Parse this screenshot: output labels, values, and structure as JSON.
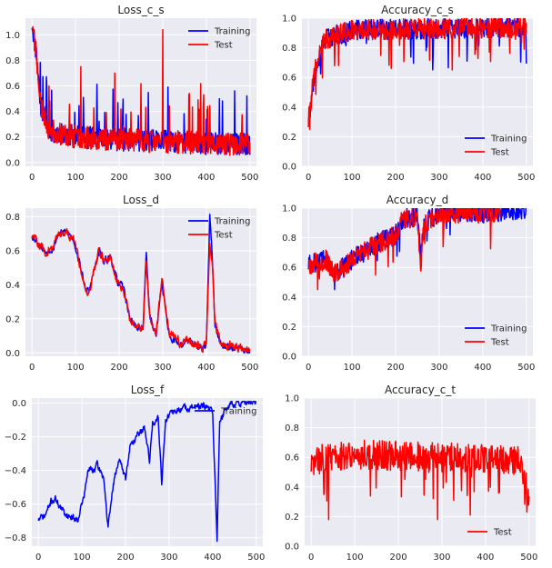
{
  "chart_data": [
    {
      "type": "line",
      "title": "Loss_c_s",
      "xlim": [
        -15,
        515
      ],
      "ylim": [
        -0.03,
        1.13
      ],
      "xticks": [
        0,
        100,
        200,
        300,
        400,
        500
      ],
      "yticks": [
        0.0,
        0.2,
        0.4,
        0.6,
        0.8,
        1.0
      ],
      "ytick_labels": [
        "0.0",
        "0.2",
        "0.4",
        "0.6",
        "0.8",
        "1.0"
      ],
      "legend": "top-right",
      "series": [
        {
          "name": "Training",
          "color": "#0000ff",
          "gen": {
            "seed": 11,
            "n": 500,
            "kind": "noisy",
            "keys": [
              [
                0,
                1.1
              ],
              [
                10,
                0.85
              ],
              [
                20,
                0.45
              ],
              [
                40,
                0.25
              ],
              [
                100,
                0.2
              ],
              [
                250,
                0.17
              ],
              [
                500,
                0.14
              ]
            ],
            "noise": 0.09,
            "spikeP": 0.05,
            "spikeAmp": 0.42,
            "min": 0.01,
            "max": 1.1
          }
        },
        {
          "name": "Test",
          "color": "#ff0000",
          "gen": {
            "seed": 23,
            "n": 500,
            "kind": "noisy",
            "keys": [
              [
                0,
                1.1
              ],
              [
                10,
                0.85
              ],
              [
                20,
                0.45
              ],
              [
                40,
                0.25
              ],
              [
                100,
                0.2
              ],
              [
                250,
                0.17
              ],
              [
                500,
                0.14
              ]
            ],
            "noise": 0.09,
            "spikeP": 0.04,
            "spikeAmp": 0.42,
            "min": 0.01,
            "max": 1.1,
            "spikes": [
              [
                300,
                1.04
              ],
              [
                112,
                0.75
              ],
              [
                190,
                0.7
              ]
            ]
          }
        }
      ]
    },
    {
      "type": "line",
      "title": "Accuracy_c_s",
      "xlim": [
        -15,
        515
      ],
      "ylim": [
        0.0,
        1.0
      ],
      "xticks": [
        0,
        100,
        200,
        300,
        400,
        500
      ],
      "yticks": [
        0.0,
        0.2,
        0.4,
        0.6,
        0.8,
        1.0
      ],
      "ytick_labels": [
        "0.0",
        "0.2",
        "0.4",
        "0.6",
        "0.8",
        "1.0"
      ],
      "legend": "bottom-right",
      "series": [
        {
          "name": "Training",
          "color": "#0000ff",
          "gen": {
            "seed": 37,
            "n": 500,
            "kind": "noisy",
            "keys": [
              [
                0,
                0.3
              ],
              [
                10,
                0.55
              ],
              [
                20,
                0.72
              ],
              [
                40,
                0.86
              ],
              [
                100,
                0.92
              ],
              [
                500,
                0.94
              ]
            ],
            "noise": 0.07,
            "spikeP": 0.05,
            "spikeAmp": -0.22,
            "min": 0.25,
            "max": 1.0
          }
        },
        {
          "name": "Test",
          "color": "#ff0000",
          "gen": {
            "seed": 41,
            "n": 500,
            "kind": "noisy",
            "keys": [
              [
                0,
                0.3
              ],
              [
                10,
                0.55
              ],
              [
                20,
                0.72
              ],
              [
                40,
                0.86
              ],
              [
                100,
                0.92
              ],
              [
                500,
                0.94
              ]
            ],
            "noise": 0.07,
            "spikeP": 0.05,
            "spikeAmp": -0.22,
            "min": 0.25,
            "max": 1.0,
            "spikes": [
              [
                3,
                0.25
              ],
              [
                190,
                0.66
              ],
              [
                330,
                0.65
              ],
              [
                60,
                0.68
              ]
            ]
          }
        }
      ]
    },
    {
      "type": "line",
      "title": "Loss_d",
      "xlim": [
        -15,
        515
      ],
      "ylim": [
        -0.02,
        0.85
      ],
      "xticks": [
        0,
        100,
        200,
        300,
        400,
        500
      ],
      "yticks": [
        0.0,
        0.2,
        0.4,
        0.6,
        0.8
      ],
      "ytick_labels": [
        "0.0",
        "0.2",
        "0.4",
        "0.6",
        "0.8"
      ],
      "legend": "top-right",
      "series": [
        {
          "name": "Training",
          "color": "#0000ff",
          "gen": {
            "seed": 53,
            "n": 500,
            "kind": "smooth",
            "keys": [
              [
                0,
                0.69
              ],
              [
                20,
                0.63
              ],
              [
                30,
                0.59
              ],
              [
                50,
                0.62
              ],
              [
                60,
                0.7
              ],
              [
                80,
                0.71
              ],
              [
                95,
                0.67
              ],
              [
                110,
                0.52
              ],
              [
                120,
                0.4
              ],
              [
                130,
                0.35
              ],
              [
                140,
                0.46
              ],
              [
                155,
                0.6
              ],
              [
                165,
                0.53
              ],
              [
                180,
                0.57
              ],
              [
                195,
                0.42
              ],
              [
                210,
                0.38
              ],
              [
                225,
                0.2
              ],
              [
                240,
                0.15
              ],
              [
                255,
                0.14
              ],
              [
                262,
                0.6
              ],
              [
                270,
                0.22
              ],
              [
                285,
                0.1
              ],
              [
                292,
                0.28
              ],
              [
                298,
                0.42
              ],
              [
                305,
                0.28
              ],
              [
                315,
                0.1
              ],
              [
                340,
                0.05
              ],
              [
                360,
                0.07
              ],
              [
                390,
                0.02
              ],
              [
                400,
                0.05
              ],
              [
                408,
                0.79
              ],
              [
                413,
                0.6
              ],
              [
                420,
                0.15
              ],
              [
                435,
                0.03
              ],
              [
                450,
                0.04
              ],
              [
                500,
                0.01
              ]
            ],
            "noise": 0.025,
            "min": 0.0,
            "max": 0.82
          }
        },
        {
          "name": "Test",
          "color": "#ff0000",
          "gen": {
            "seed": 59,
            "n": 500,
            "kind": "smooth",
            "keys": [
              [
                0,
                0.69
              ],
              [
                20,
                0.63
              ],
              [
                30,
                0.59
              ],
              [
                50,
                0.62
              ],
              [
                60,
                0.7
              ],
              [
                80,
                0.71
              ],
              [
                95,
                0.67
              ],
              [
                110,
                0.52
              ],
              [
                120,
                0.4
              ],
              [
                130,
                0.35
              ],
              [
                140,
                0.46
              ],
              [
                155,
                0.6
              ],
              [
                165,
                0.53
              ],
              [
                180,
                0.57
              ],
              [
                195,
                0.42
              ],
              [
                210,
                0.38
              ],
              [
                225,
                0.2
              ],
              [
                240,
                0.15
              ],
              [
                255,
                0.14
              ],
              [
                262,
                0.55
              ],
              [
                270,
                0.22
              ],
              [
                285,
                0.1
              ],
              [
                292,
                0.3
              ],
              [
                298,
                0.44
              ],
              [
                305,
                0.3
              ],
              [
                315,
                0.12
              ],
              [
                340,
                0.06
              ],
              [
                360,
                0.08
              ],
              [
                390,
                0.03
              ],
              [
                400,
                0.06
              ],
              [
                408,
                0.65
              ],
              [
                413,
                0.55
              ],
              [
                420,
                0.18
              ],
              [
                435,
                0.04
              ],
              [
                450,
                0.05
              ],
              [
                500,
                0.01
              ]
            ],
            "noise": 0.03,
            "min": 0.0,
            "max": 0.82
          }
        }
      ]
    },
    {
      "type": "line",
      "title": "Accuracy_d",
      "xlim": [
        -15,
        515
      ],
      "ylim": [
        0.0,
        1.0
      ],
      "xticks": [
        0,
        100,
        200,
        300,
        400,
        500
      ],
      "yticks": [
        0.0,
        0.2,
        0.4,
        0.6,
        0.8,
        1.0
      ],
      "ytick_labels": [
        "0.0",
        "0.2",
        "0.4",
        "0.6",
        "0.8",
        "1.0"
      ],
      "legend": "bottom-right",
      "series": [
        {
          "name": "Training",
          "color": "#0000ff",
          "gen": {
            "seed": 61,
            "n": 500,
            "kind": "noisy",
            "keys": [
              [
                0,
                0.62
              ],
              [
                40,
                0.65
              ],
              [
                60,
                0.55
              ],
              [
                100,
                0.65
              ],
              [
                150,
                0.75
              ],
              [
                200,
                0.82
              ],
              [
                215,
                0.92
              ],
              [
                250,
                0.95
              ],
              [
                258,
                0.65
              ],
              [
                265,
                0.9
              ],
              [
                300,
                0.97
              ],
              [
                400,
                0.97
              ],
              [
                430,
                0.98
              ],
              [
                500,
                1.0
              ]
            ],
            "noise": 0.07,
            "spikeP": 0.02,
            "spikeAmp": -0.2,
            "min": 0.45,
            "max": 1.0
          }
        },
        {
          "name": "Test",
          "color": "#ff0000",
          "gen": {
            "seed": 67,
            "n": 500,
            "kind": "noisy",
            "keys": [
              [
                0,
                0.62
              ],
              [
                40,
                0.65
              ],
              [
                60,
                0.55
              ],
              [
                100,
                0.65
              ],
              [
                150,
                0.75
              ],
              [
                200,
                0.82
              ],
              [
                215,
                0.92
              ],
              [
                250,
                0.95
              ],
              [
                258,
                0.6
              ],
              [
                265,
                0.88
              ],
              [
                300,
                0.97
              ],
              [
                400,
                0.96
              ],
              [
                430,
                0.98
              ],
              [
                440,
                1.0
              ]
            ],
            "noise": 0.07,
            "spikeP": 0.02,
            "spikeAmp": -0.2,
            "min": 0.45,
            "max": 1.0
          }
        }
      ]
    },
    {
      "type": "line",
      "title": "Loss_f",
      "xlim": [
        -15,
        515
      ],
      "ylim": [
        -0.85,
        0.03
      ],
      "xticks": [
        0,
        100,
        200,
        300,
        400,
        500
      ],
      "yticks": [
        0.0,
        -0.2,
        -0.4,
        -0.6,
        -0.8
      ],
      "ytick_labels": [
        "0.0",
        "−0.2",
        "−0.4",
        "−0.6",
        "−0.8"
      ],
      "legend": "top-right",
      "series": [
        {
          "name": "Training",
          "color": "#0000ff",
          "gen": {
            "seed": 71,
            "n": 500,
            "kind": "smooth",
            "keys": [
              [
                0,
                -0.69
              ],
              [
                15,
                -0.67
              ],
              [
                30,
                -0.58
              ],
              [
                40,
                -0.57
              ],
              [
                55,
                -0.64
              ],
              [
                70,
                -0.67
              ],
              [
                90,
                -0.69
              ],
              [
                105,
                -0.55
              ],
              [
                115,
                -0.39
              ],
              [
                125,
                -0.4
              ],
              [
                135,
                -0.37
              ],
              [
                150,
                -0.44
              ],
              [
                160,
                -0.75
              ],
              [
                172,
                -0.48
              ],
              [
                185,
                -0.33
              ],
              [
                200,
                -0.45
              ],
              [
                210,
                -0.26
              ],
              [
                230,
                -0.18
              ],
              [
                245,
                -0.15
              ],
              [
                255,
                -0.35
              ],
              [
                262,
                -0.12
              ],
              [
                275,
                -0.08
              ],
              [
                283,
                -0.47
              ],
              [
                292,
                -0.1
              ],
              [
                305,
                -0.06
              ],
              [
                330,
                -0.03
              ],
              [
                380,
                -0.02
              ],
              [
                400,
                -0.05
              ],
              [
                410,
                -0.82
              ],
              [
                416,
                -0.1
              ],
              [
                440,
                0.0
              ],
              [
                500,
                0.0
              ]
            ],
            "noise": 0.025,
            "min": -0.83,
            "max": 0.01
          }
        }
      ]
    },
    {
      "type": "line",
      "title": "Accuracy_c_t",
      "xlim": [
        -15,
        515
      ],
      "ylim": [
        0.0,
        1.0
      ],
      "xticks": [
        0,
        100,
        200,
        300,
        400,
        500
      ],
      "yticks": [
        0.0,
        0.2,
        0.4,
        0.6,
        0.8,
        1.0
      ],
      "ytick_labels": [
        "0.0",
        "0.2",
        "0.4",
        "0.6",
        "0.8",
        "1.0"
      ],
      "legend": "bottom-right",
      "series": [
        {
          "name": "Test",
          "color": "#ff0000",
          "gen": {
            "seed": 83,
            "n": 500,
            "kind": "noisy",
            "keys": [
              [
                0,
                0.55
              ],
              [
                30,
                0.6
              ],
              [
                100,
                0.62
              ],
              [
                300,
                0.6
              ],
              [
                480,
                0.58
              ],
              [
                500,
                0.3
              ]
            ],
            "noise": 0.1,
            "spikeP": 0.06,
            "spikeAmp": -0.3,
            "min": 0.18,
            "max": 0.86,
            "spikes": [
              [
                495,
                0.23
              ],
              [
                40,
                0.18
              ],
              [
                290,
                0.18
              ],
              [
                365,
                0.21
              ]
            ]
          }
        }
      ]
    }
  ]
}
